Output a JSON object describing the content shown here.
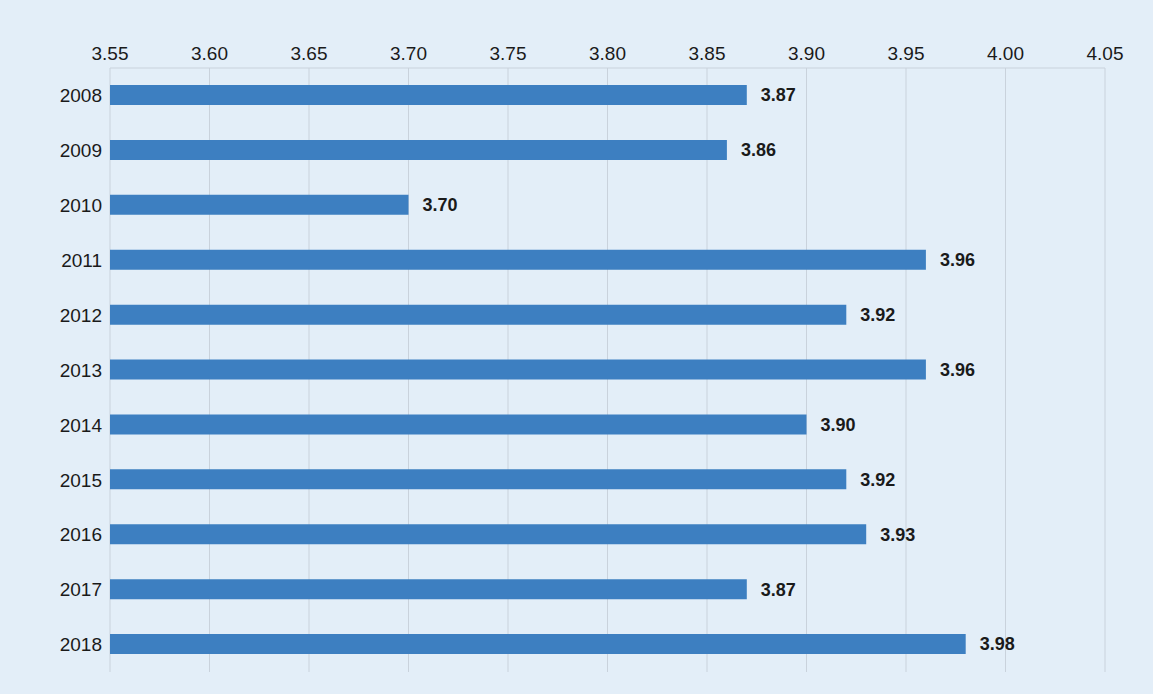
{
  "chart_data": {
    "type": "bar",
    "orientation": "horizontal",
    "categories": [
      "2008",
      "2009",
      "2010",
      "2011",
      "2012",
      "2013",
      "2014",
      "2015",
      "2016",
      "2017",
      "2018"
    ],
    "values": [
      3.87,
      3.86,
      3.7,
      3.96,
      3.92,
      3.96,
      3.9,
      3.92,
      3.93,
      3.87,
      3.98
    ],
    "value_labels": [
      "3.87",
      "3.86",
      "3.70",
      "3.96",
      "3.92",
      "3.96",
      "3.90",
      "3.92",
      "3.93",
      "3.87",
      "3.98"
    ],
    "color": "#3d7fc1",
    "xlim": [
      3.55,
      4.05
    ],
    "xticks": [
      3.55,
      {
        "value": 3.6,
        "label": "3.60"
      },
      3.65,
      {
        "value": 3.7,
        "label": "3.70"
      },
      3.75,
      {
        "value": 3.8,
        "label": "3.80"
      },
      3.85,
      {
        "value": 3.9,
        "label": "3.90"
      },
      3.95,
      {
        "value": 4.0,
        "label": "4.00"
      },
      4.05
    ],
    "grid": true,
    "data_labels": true
  }
}
